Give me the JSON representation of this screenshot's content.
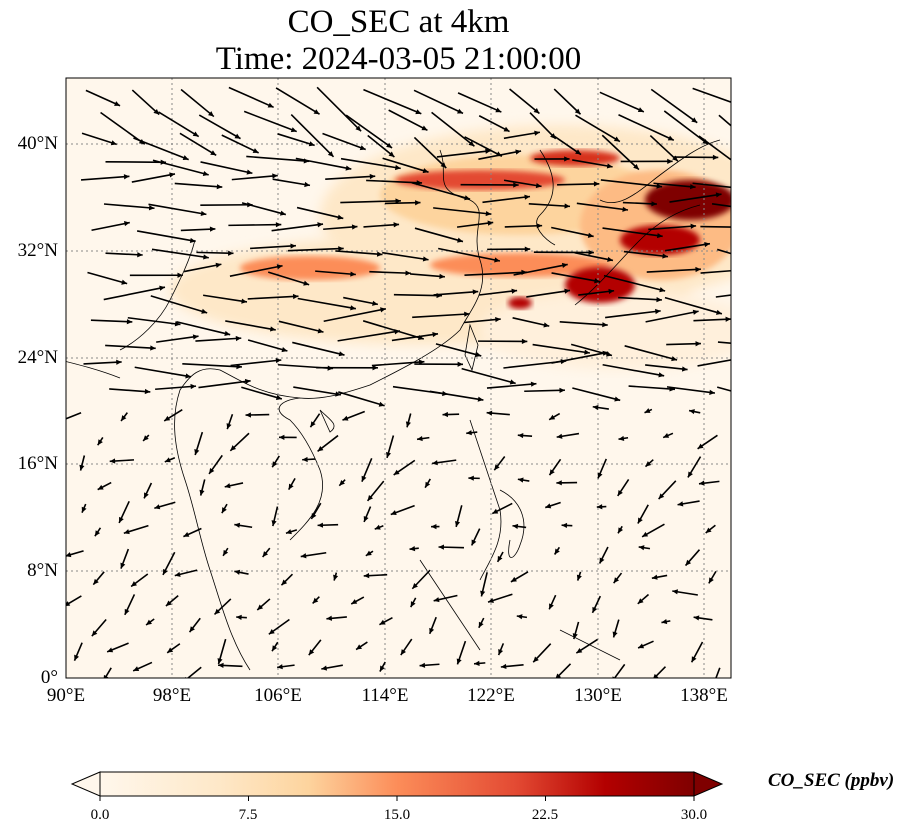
{
  "title": {
    "line1": "CO_SEC at 4km",
    "line2": "Time: 2024-03-05 21:00:00"
  },
  "map": {
    "lon_range": [
      90,
      140
    ],
    "lat_range": [
      0,
      45
    ],
    "lon_ticks": [
      "90°E",
      "98°E",
      "106°E",
      "114°E",
      "122°E",
      "130°E",
      "138°E"
    ],
    "lat_ticks": [
      "0°",
      "8°N",
      "16°N",
      "24°N",
      "32°N",
      "40°N"
    ],
    "gridlines": true,
    "colormap": "OrRd",
    "vector_field": "wind arrows, predominantly westerly",
    "colors": {
      "low": "#fff7ec",
      "high": "#7f0000",
      "grid": "#888888"
    }
  },
  "colorbar": {
    "label": "CO_SEC (ppbv)",
    "ticks": [
      "0.0",
      "7.5",
      "15.0",
      "22.5",
      "30.0"
    ],
    "range": [
      0,
      30
    ],
    "extend": "both"
  }
}
